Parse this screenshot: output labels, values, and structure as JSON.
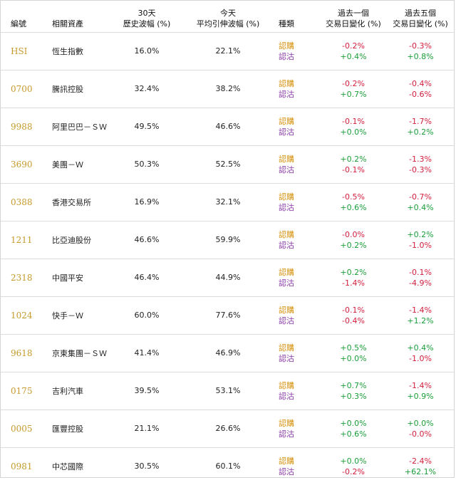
{
  "headers": {
    "code": "編號",
    "asset": "相關資產",
    "hv_line1": "30天",
    "hv_line2": "歷史波幅 (%)",
    "iv_line1": "今天",
    "iv_line2": "平均引伸波幅 (%)",
    "type": "種類",
    "d1_line1": "過去一個",
    "d1_line2": "交易日變化 (%)",
    "d5_line1": "過去五個",
    "d5_line2": "交易日變化 (%)"
  },
  "type_labels": {
    "call": "認購",
    "put": "認沽"
  },
  "colors": {
    "code": "#c69a2c",
    "call": "#d6900c",
    "put": "#8a3aa7",
    "negative": "#d11e3d",
    "positive": "#1b9e3a"
  },
  "rows": [
    {
      "code": "HSI",
      "asset": "恆生指數",
      "hv": "16.0%",
      "iv": "22.1%",
      "d1_call": "-0.2%",
      "d1_put": "+0.4%",
      "d5_call": "-0.3%",
      "d5_put": "+0.8%"
    },
    {
      "code": "0700",
      "asset": "騰訊控股",
      "hv": "32.4%",
      "iv": "38.2%",
      "d1_call": "-0.2%",
      "d1_put": "+0.7%",
      "d5_call": "-0.4%",
      "d5_put": "-0.6%"
    },
    {
      "code": "9988",
      "asset": "阿里巴巴－ＳＷ",
      "hv": "49.5%",
      "iv": "46.6%",
      "d1_call": "-0.1%",
      "d1_put": "+0.0%",
      "d5_call": "-1.7%",
      "d5_put": "+0.2%"
    },
    {
      "code": "3690",
      "asset": "美團－Ｗ",
      "hv": "50.3%",
      "iv": "52.5%",
      "d1_call": "+0.2%",
      "d1_put": "-0.1%",
      "d5_call": "-1.3%",
      "d5_put": "-0.3%"
    },
    {
      "code": "0388",
      "asset": "香港交易所",
      "hv": "16.9%",
      "iv": "32.1%",
      "d1_call": "-0.5%",
      "d1_put": "+0.6%",
      "d5_call": "-0.7%",
      "d5_put": "+0.4%"
    },
    {
      "code": "1211",
      "asset": "比亞迪股份",
      "hv": "46.6%",
      "iv": "59.9%",
      "d1_call": "-0.0%",
      "d1_put": "+0.2%",
      "d5_call": "+0.2%",
      "d5_put": "-1.0%"
    },
    {
      "code": "2318",
      "asset": "中國平安",
      "hv": "46.4%",
      "iv": "44.9%",
      "d1_call": "+0.2%",
      "d1_put": "-1.4%",
      "d5_call": "-0.1%",
      "d5_put": "-4.9%"
    },
    {
      "code": "1024",
      "asset": "快手－Ｗ",
      "hv": "60.0%",
      "iv": "77.6%",
      "d1_call": "-0.1%",
      "d1_put": "-0.4%",
      "d5_call": "-1.4%",
      "d5_put": "+1.2%"
    },
    {
      "code": "9618",
      "asset": "京東集團－ＳＷ",
      "hv": "41.4%",
      "iv": "46.9%",
      "d1_call": "+0.5%",
      "d1_put": "+0.0%",
      "d5_call": "+0.4%",
      "d5_put": "-1.0%"
    },
    {
      "code": "0175",
      "asset": "吉利汽車",
      "hv": "39.5%",
      "iv": "53.1%",
      "d1_call": "+0.7%",
      "d1_put": "+0.3%",
      "d5_call": "-1.4%",
      "d5_put": "+0.9%"
    },
    {
      "code": "0005",
      "asset": "匯豐控股",
      "hv": "21.1%",
      "iv": "26.6%",
      "d1_call": "+0.0%",
      "d1_put": "+0.6%",
      "d5_call": "+0.0%",
      "d5_put": "-0.0%"
    },
    {
      "code": "0981",
      "asset": "中芯國際",
      "hv": "30.5%",
      "iv": "60.1%",
      "d1_call": "+0.0%",
      "d1_put": "-0.2%",
      "d5_call": "-2.4%",
      "d5_put": "+62.1%"
    }
  ]
}
